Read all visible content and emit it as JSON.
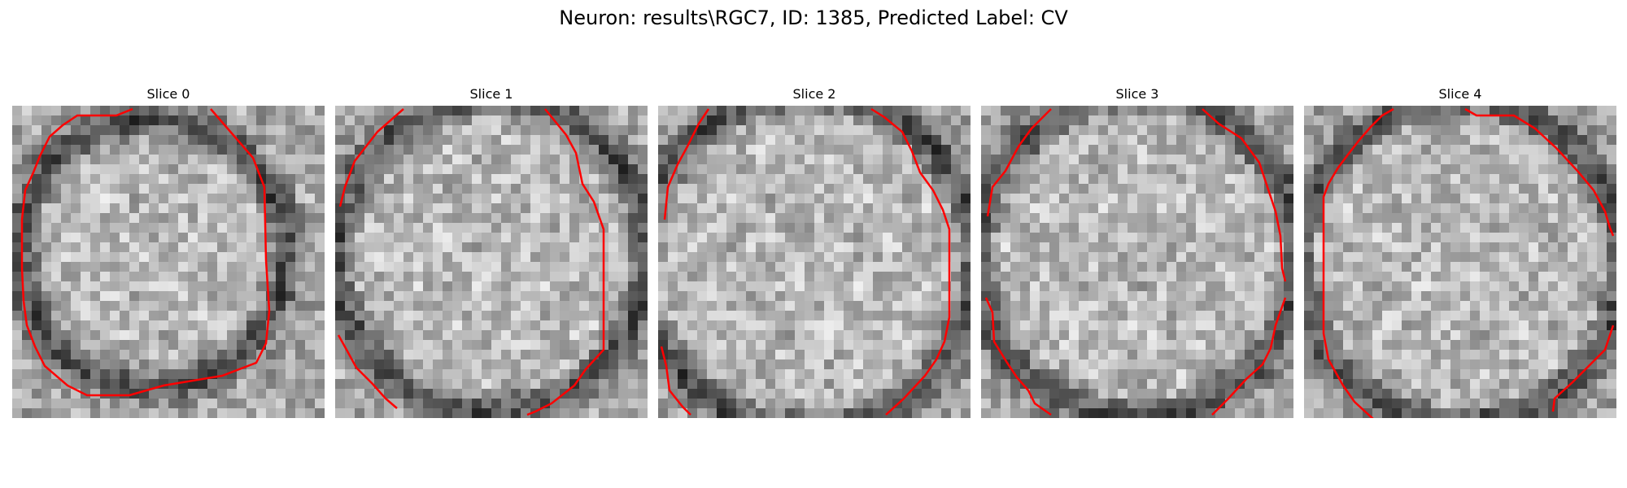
{
  "figure": {
    "title": "Neuron: results\\RGC7, ID: 1385, Predicted Label: CV"
  },
  "slices": [
    {
      "title": "Slice 0"
    },
    {
      "title": "Slice 1"
    },
    {
      "title": "Slice 2"
    },
    {
      "title": "Slice 3"
    },
    {
      "title": "Slice 4"
    }
  ],
  "colors": {
    "contour": "#ff0000",
    "background": "#ffffff"
  }
}
